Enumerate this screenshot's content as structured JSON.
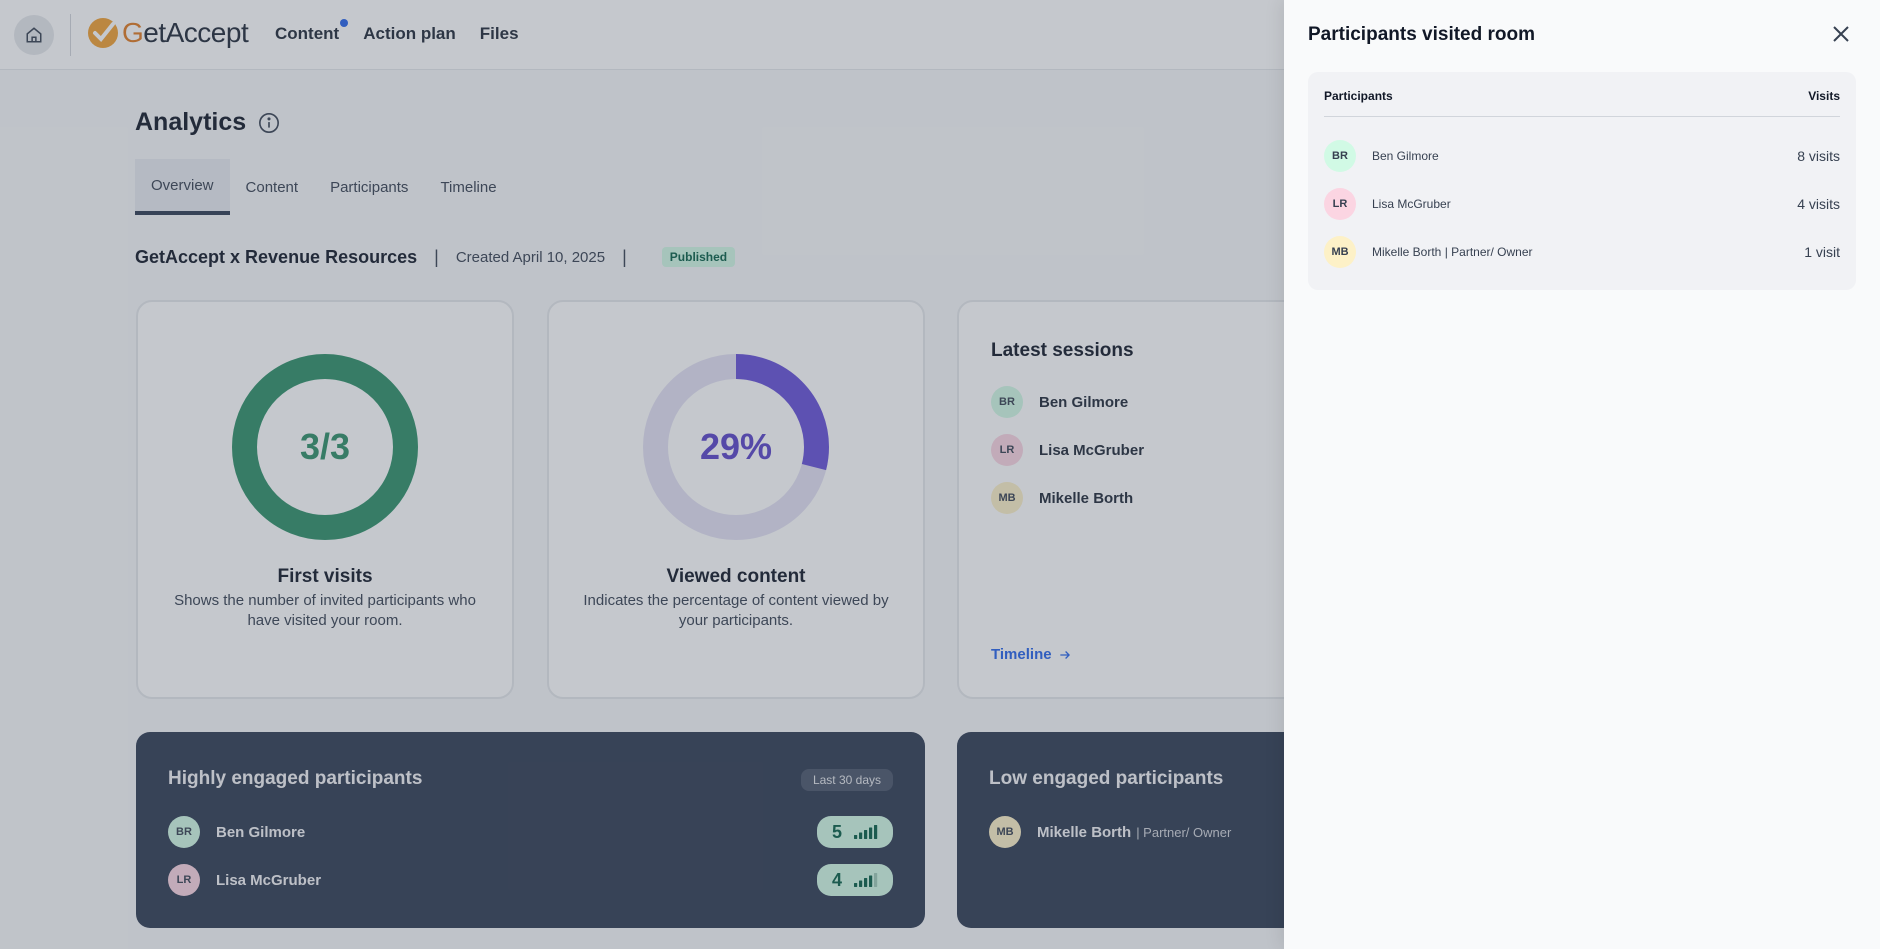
{
  "header": {
    "logo_text_g": "G",
    "logo_text_rest": "etAccept",
    "nav": [
      {
        "label": "Content"
      },
      {
        "label": "Action plan"
      },
      {
        "label": "Files"
      }
    ]
  },
  "analytics": {
    "title": "Analytics",
    "tabs": [
      "Overview",
      "Content",
      "Participants",
      "Timeline"
    ],
    "room_name": "GetAccept x Revenue Resources",
    "created": "Created April 10, 2025",
    "status": "Published"
  },
  "cards": {
    "first_visits": {
      "value_label": "3/3",
      "fraction": 1.0,
      "title": "First visits",
      "description": "Shows the number of invited participants who have visited your room.",
      "color": "#2f8f68"
    },
    "viewed_content": {
      "value_label": "29%",
      "fraction": 0.29,
      "title": "Viewed content",
      "description": "Indicates the percentage of content viewed by your participants.",
      "color": "#6650d8",
      "track_color": "#e3e1f3"
    },
    "latest_sessions": {
      "title": "Latest sessions",
      "items": [
        {
          "initials": "BR",
          "name": "Ben Gilmore",
          "avatar_color": "#d1fae5"
        },
        {
          "initials": "LR",
          "name": "Lisa McGruber",
          "avatar_color": "#fbd5e2"
        },
        {
          "initials": "MB",
          "name": "Mikelle Borth",
          "avatar_color": "#fdf1c7"
        }
      ],
      "link": "Timeline"
    }
  },
  "engagement": {
    "high": {
      "title": "Highly engaged participants",
      "range": "Last 30 days",
      "items": [
        {
          "initials": "BR",
          "name": "Ben Gilmore",
          "score": "5",
          "bars": 5,
          "avatar_color": "#d1fae5"
        },
        {
          "initials": "LR",
          "name": "Lisa McGruber",
          "score": "4",
          "bars": 4,
          "avatar_color": "#fbd5e2"
        }
      ]
    },
    "low": {
      "title": "Low engaged participants",
      "items": [
        {
          "initials": "MB",
          "name": "Mikelle Borth",
          "role": "| Partner/ Owner",
          "avatar_color": "#fdf1c7"
        }
      ]
    }
  },
  "panel": {
    "title": "Participants visited room",
    "col_participants": "Participants",
    "col_visits": "Visits",
    "rows": [
      {
        "initials": "BR",
        "name": "Ben Gilmore",
        "visits": "8 visits",
        "avatar_color": "#d1fae5"
      },
      {
        "initials": "LR",
        "name": "Lisa McGruber",
        "visits": "4 visits",
        "avatar_color": "#fbd5e2"
      },
      {
        "initials": "MB",
        "name": "Mikelle Borth | Partner/ Owner",
        "visits": "1 visit",
        "avatar_color": "#fdf1c7"
      }
    ]
  }
}
